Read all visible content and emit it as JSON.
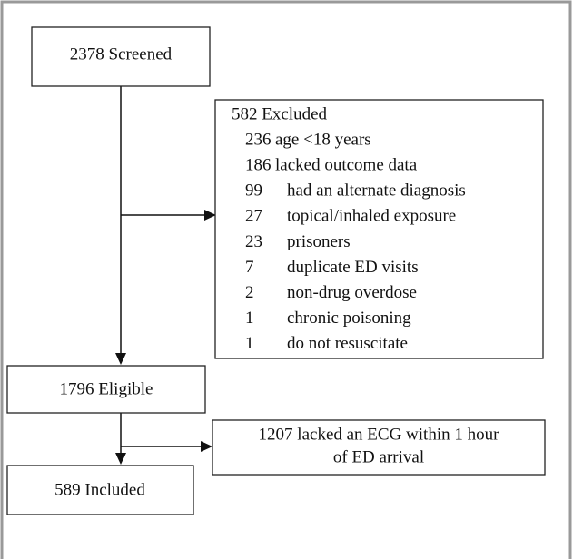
{
  "nodes": [
    {
      "label": "2378 Screened"
    },
    {
      "label": "582 Excluded",
      "items": [
        {
          "count": "236",
          "label": "age <18 years"
        },
        {
          "count": "186",
          "label": "lacked outcome data"
        },
        {
          "count": "99",
          "label": "had an alternate diagnosis"
        },
        {
          "count": "27",
          "label": "topical/inhaled exposure"
        },
        {
          "count": "23",
          "label": "prisoners"
        },
        {
          "count": "7",
          "label": "duplicate ED visits"
        },
        {
          "count": "2",
          "label": "non-drug overdose"
        },
        {
          "count": "1",
          "label": "chronic poisoning"
        },
        {
          "count": "1",
          "label": "do not resuscitate"
        }
      ]
    },
    {
      "label": "1796 Eligible"
    },
    {
      "lines": [
        "1207 lacked an ECG within 1 hour",
        "of ED arrival"
      ]
    },
    {
      "label": "589 Included"
    }
  ]
}
